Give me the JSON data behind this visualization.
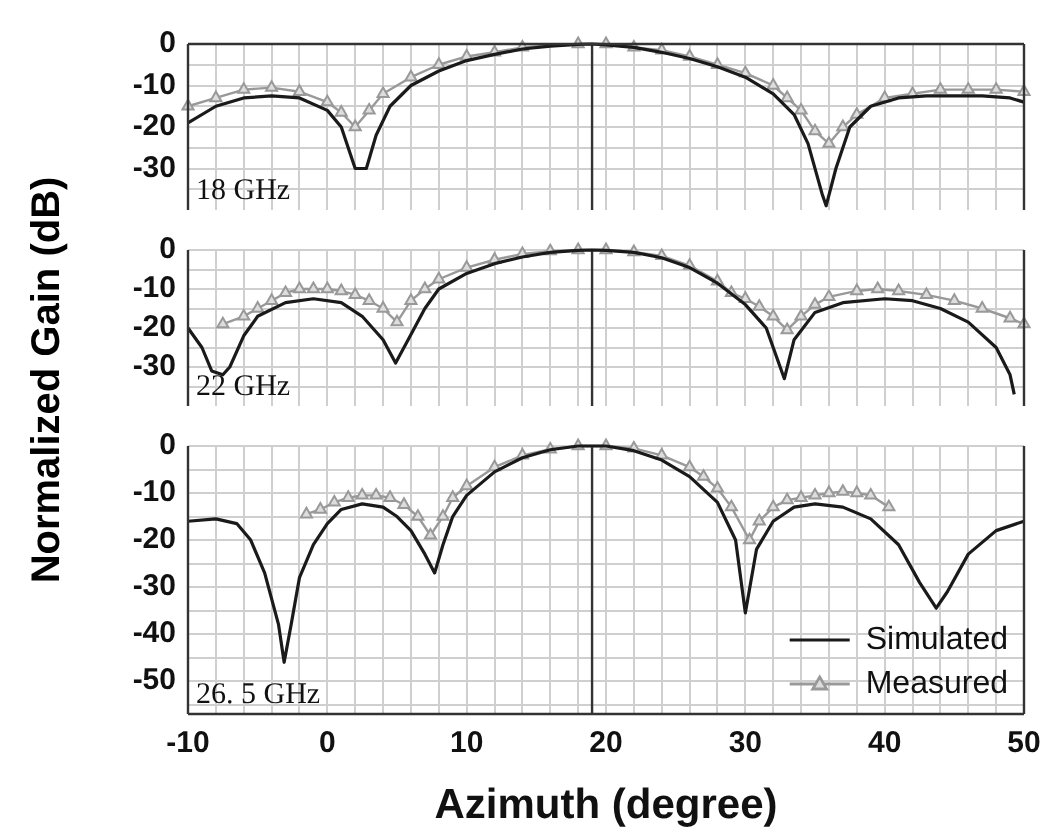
{
  "chart_data": [
    {
      "type": "line",
      "xlim": [
        -10,
        50
      ],
      "xticks": [
        -10,
        {
          "value": -8,
          "label": null
        },
        {
          "value": -6,
          "label": null
        },
        {
          "value": -4,
          "label": null
        },
        {
          "value": -2,
          "label": null
        },
        0,
        {
          "value": 2,
          "label": null
        },
        {
          "value": 4,
          "label": null
        },
        {
          "value": 6,
          "label": null
        },
        {
          "value": 8,
          "label": null
        },
        10,
        {
          "value": 12,
          "label": null
        },
        {
          "value": 14,
          "label": null
        },
        {
          "value": 16,
          "label": null
        },
        {
          "value": 18,
          "label": null
        },
        20,
        {
          "value": 22,
          "label": null
        },
        {
          "value": 24,
          "label": null
        },
        {
          "value": 26,
          "label": null
        },
        {
          "value": 28,
          "label": null
        },
        30,
        {
          "value": 32,
          "label": null
        },
        {
          "value": 34,
          "label": null
        },
        {
          "value": 36,
          "label": null
        },
        {
          "value": 38,
          "label": null
        },
        40,
        {
          "value": 42,
          "label": null
        },
        {
          "value": 44,
          "label": null
        },
        {
          "value": 46,
          "label": null
        },
        {
          "value": 48,
          "label": null
        },
        50
      ],
      "ylim": [
        -40,
        0
      ],
      "yticks": [
        0,
        {
          "value": -5,
          "label": null
        },
        -10,
        {
          "value": -15,
          "label": null
        },
        -20,
        {
          "value": -25,
          "label": null
        },
        -30,
        {
          "value": -35,
          "label": null
        }
      ],
      "grid": true,
      "tick_labels": "y",
      "ref_lines": [
        {
          "axis": "x",
          "value": 19,
          "color": "#333333"
        }
      ],
      "annotations": [
        "18 GHz"
      ],
      "series": [
        {
          "color": "#1a1a1a",
          "marker": "none",
          "x": [
            -10,
            -8,
            -6,
            -4,
            -2,
            0,
            1,
            1.8,
            2,
            2.8,
            3.5,
            4.5,
            6,
            8,
            10,
            12,
            14,
            16,
            18,
            19,
            20,
            22,
            24,
            26,
            28,
            30,
            32,
            33.5,
            34.5,
            35.5,
            35.8,
            36.5,
            37.5,
            39,
            41,
            43,
            45,
            47,
            49,
            50
          ],
          "values": [
            -19,
            -15,
            -13,
            -12.5,
            -13,
            -16,
            -20,
            -28,
            -30,
            -30,
            -22,
            -15,
            -10,
            -6.5,
            -4,
            -2.5,
            -1.2,
            -0.5,
            -0.1,
            0,
            -0.2,
            -0.8,
            -2,
            -3.5,
            -5.5,
            -8,
            -12,
            -17,
            -24,
            -36,
            -39,
            -30,
            -20,
            -15,
            -13,
            -12.5,
            -12.5,
            -12.5,
            -13,
            -14
          ]
        },
        {
          "color": "#999999",
          "marker": "triangle",
          "x": [
            -10,
            -8,
            -6,
            -4,
            -2,
            0,
            1,
            2,
            3,
            4,
            6,
            8,
            10,
            12,
            14,
            18,
            20,
            22,
            24,
            26,
            28,
            30,
            32,
            33,
            34,
            35,
            36,
            37,
            38,
            40,
            42,
            44,
            46,
            48,
            50
          ],
          "values": [
            -15,
            -13,
            -11,
            -10.5,
            -11.5,
            -14,
            -16.5,
            -20,
            -16,
            -12,
            -8,
            -5,
            -3,
            -2,
            -0.8,
            0,
            0,
            -0.8,
            -1.5,
            -3,
            -5,
            -7,
            -10,
            -13,
            -16,
            -21,
            -24,
            -20,
            -17,
            -13,
            -12,
            -11,
            -11,
            -11,
            -11.5
          ]
        }
      ]
    },
    {
      "type": "line",
      "xlim": [
        -10,
        50
      ],
      "xticks": [
        -10,
        {
          "value": -8,
          "label": null
        },
        {
          "value": -6,
          "label": null
        },
        {
          "value": -4,
          "label": null
        },
        {
          "value": -2,
          "label": null
        },
        0,
        {
          "value": 2,
          "label": null
        },
        {
          "value": 4,
          "label": null
        },
        {
          "value": 6,
          "label": null
        },
        {
          "value": 8,
          "label": null
        },
        10,
        {
          "value": 12,
          "label": null
        },
        {
          "value": 14,
          "label": null
        },
        {
          "value": 16,
          "label": null
        },
        {
          "value": 18,
          "label": null
        },
        20,
        {
          "value": 22,
          "label": null
        },
        {
          "value": 24,
          "label": null
        },
        {
          "value": 26,
          "label": null
        },
        {
          "value": 28,
          "label": null
        },
        30,
        {
          "value": 32,
          "label": null
        },
        {
          "value": 34,
          "label": null
        },
        {
          "value": 36,
          "label": null
        },
        {
          "value": 38,
          "label": null
        },
        40,
        {
          "value": 42,
          "label": null
        },
        {
          "value": 44,
          "label": null
        },
        {
          "value": 46,
          "label": null
        },
        {
          "value": 48,
          "label": null
        },
        50
      ],
      "ylim": [
        -40,
        0
      ],
      "yticks": [
        0,
        {
          "value": -5,
          "label": null
        },
        -10,
        {
          "value": -15,
          "label": null
        },
        -20,
        {
          "value": -25,
          "label": null
        },
        -30,
        {
          "value": -35,
          "label": null
        }
      ],
      "grid": true,
      "tick_labels": "y",
      "ref_lines": [
        {
          "axis": "x",
          "value": 19,
          "color": "#333333"
        }
      ],
      "annotations": [
        "22 GHz"
      ],
      "series": [
        {
          "color": "#1a1a1a",
          "marker": "none",
          "x": [
            -10,
            -9,
            -8.3,
            -7.5,
            -7,
            -6,
            -5,
            -3,
            -1,
            1,
            2.5,
            4,
            4.9,
            5.8,
            7,
            8,
            10,
            12,
            14,
            16,
            18,
            19,
            20,
            22,
            24,
            26,
            28,
            30,
            31.5,
            32.8,
            33.5,
            35,
            37,
            40,
            42,
            44,
            46,
            48,
            49,
            49.3
          ],
          "values": [
            -20,
            -25,
            -31,
            -32,
            -30,
            -22,
            -17,
            -13.5,
            -12.5,
            -13.5,
            -17,
            -23,
            -29,
            -23,
            -15,
            -10,
            -6,
            -3.5,
            -1.8,
            -0.6,
            -0.1,
            0,
            -0.1,
            -0.6,
            -2,
            -4.5,
            -8.5,
            -14,
            -20,
            -33,
            -23,
            -16,
            -13.5,
            -12.5,
            -13,
            -15,
            -18.5,
            -25,
            -32,
            -37
          ]
        },
        {
          "color": "#999999",
          "marker": "triangle",
          "x": [
            -7.5,
            -6,
            -5,
            -4,
            -3,
            -2,
            -1,
            0,
            1,
            2,
            3,
            4,
            5,
            6,
            7,
            8,
            10,
            12,
            14,
            16,
            18,
            20,
            22,
            24,
            26,
            28,
            29,
            30,
            31,
            32,
            33,
            34,
            35,
            36,
            38,
            39.5,
            41,
            43,
            45,
            47,
            49,
            50
          ],
          "values": [
            -19,
            -17,
            -15,
            -13,
            -11,
            -10,
            -10,
            -10,
            -10.5,
            -11.5,
            -13,
            -15,
            -18.5,
            -13,
            -10,
            -7.5,
            -4.5,
            -2.5,
            -1,
            -0.3,
            0,
            0,
            -0.5,
            -1.5,
            -4,
            -8,
            -11,
            -12.5,
            -14.5,
            -17,
            -20.5,
            -17,
            -14,
            -12,
            -10.5,
            -10,
            -10.5,
            -11.5,
            -13,
            -15,
            -17.5,
            -19
          ]
        }
      ]
    },
    {
      "type": "line",
      "xlabel": "Azimuth (degree)",
      "ylabel": "Normalized Gain (dB)",
      "legend": "bottom right",
      "xlim": [
        -10,
        50
      ],
      "xticks": [
        -10,
        {
          "value": -8,
          "label": null
        },
        {
          "value": -6,
          "label": null
        },
        {
          "value": -4,
          "label": null
        },
        {
          "value": -2,
          "label": null
        },
        0,
        {
          "value": 2,
          "label": null
        },
        {
          "value": 4,
          "label": null
        },
        {
          "value": 6,
          "label": null
        },
        {
          "value": 8,
          "label": null
        },
        10,
        {
          "value": 12,
          "label": null
        },
        {
          "value": 14,
          "label": null
        },
        {
          "value": 16,
          "label": null
        },
        {
          "value": 18,
          "label": null
        },
        20,
        {
          "value": 22,
          "label": null
        },
        {
          "value": 24,
          "label": null
        },
        {
          "value": 26,
          "label": null
        },
        {
          "value": 28,
          "label": null
        },
        30,
        {
          "value": 32,
          "label": null
        },
        {
          "value": 34,
          "label": null
        },
        {
          "value": 36,
          "label": null
        },
        {
          "value": 38,
          "label": null
        },
        40,
        {
          "value": 42,
          "label": null
        },
        {
          "value": 44,
          "label": null
        },
        {
          "value": 46,
          "label": null
        },
        {
          "value": 48,
          "label": null
        },
        50
      ],
      "ylim": [
        -57,
        0
      ],
      "yticks": [
        0,
        {
          "value": -5,
          "label": null
        },
        -10,
        {
          "value": -15,
          "label": null
        },
        -20,
        {
          "value": -25,
          "label": null
        },
        -30,
        {
          "value": -35,
          "label": null
        },
        -40,
        {
          "value": -45,
          "label": null
        },
        -50,
        {
          "value": -55,
          "label": null
        }
      ],
      "grid": true,
      "ref_lines": [
        {
          "axis": "x",
          "value": 19,
          "color": "#333333"
        }
      ],
      "annotations": [
        "26. 5 GHz"
      ],
      "series": [
        {
          "name": "Simulated",
          "color": "#1a1a1a",
          "marker": "none",
          "x": [
            -10,
            -8,
            -6.5,
            -5.5,
            -4.5,
            -3.5,
            -3.1,
            -2.6,
            -2,
            -1,
            0,
            1,
            2.5,
            4,
            5,
            6,
            7,
            7.7,
            8.3,
            9,
            10,
            12,
            14,
            16,
            18,
            20,
            22,
            24,
            26,
            28,
            29.3,
            30,
            30.8,
            32,
            33.5,
            35,
            37,
            39,
            41,
            42.5,
            43.7,
            44.5,
            46,
            48,
            50
          ],
          "values": [
            -16,
            -15.5,
            -16.5,
            -20,
            -27,
            -38,
            -46,
            -38,
            -28,
            -21,
            -16.5,
            -13.5,
            -12.3,
            -13,
            -15,
            -18,
            -23,
            -27,
            -21,
            -15,
            -10.5,
            -5.5,
            -2.5,
            -0.8,
            0,
            0,
            -1,
            -3,
            -6.5,
            -12,
            -20,
            -35.5,
            -22,
            -16,
            -13,
            -12.3,
            -13,
            -15.5,
            -21,
            -29,
            -34.5,
            -31,
            -23,
            -18,
            -16
          ]
        },
        {
          "name": "Measured",
          "color": "#999999",
          "marker": "triangle",
          "x": [
            -1.5,
            -0.5,
            0.5,
            1.5,
            2.5,
            3.5,
            4.5,
            5.5,
            6.5,
            7.4,
            8.3,
            9,
            10,
            12,
            14,
            16,
            18,
            20,
            22,
            24,
            26,
            27,
            28,
            29,
            30.3,
            31,
            32,
            33,
            34,
            35,
            36,
            37,
            38,
            39,
            40.3
          ],
          "values": [
            -14.5,
            -13.5,
            -12,
            -11,
            -10.5,
            -10.5,
            -11,
            -12.5,
            -15,
            -19,
            -15,
            -11,
            -8.5,
            -4.5,
            -2,
            -0.7,
            0,
            0,
            -0.5,
            -2,
            -4.5,
            -6.5,
            -9,
            -13,
            -20,
            -16,
            -13,
            -11.5,
            -11,
            -10.5,
            -10,
            -9.7,
            -10,
            -10.5,
            -13
          ]
        }
      ]
    }
  ]
}
